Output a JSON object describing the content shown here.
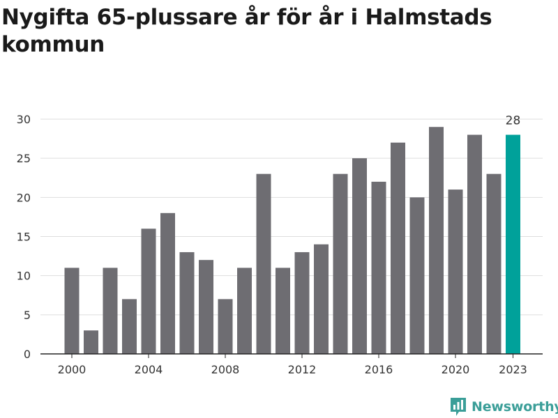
{
  "title": "Nygifta 65-plussare år för år i Halmstads kommun",
  "brand": {
    "name": "Newsworthy",
    "icon": "bar-chart-icon",
    "color": "#3a9e98"
  },
  "colors": {
    "bar": "#6e6d72",
    "highlight": "#00a19a",
    "grid": "#dddddd",
    "axis": "#222222",
    "text": "#333333"
  },
  "chart_data": {
    "type": "bar",
    "title": "Nygifta 65-plussare år för år i Halmstads kommun",
    "xlabel": "",
    "ylabel": "",
    "ylim": [
      0,
      30
    ],
    "yticks": [
      0,
      5,
      10,
      15,
      20,
      25,
      30
    ],
    "grid": true,
    "categories": [
      2000,
      2001,
      2002,
      2003,
      2004,
      2005,
      2006,
      2007,
      2008,
      2009,
      2010,
      2011,
      2012,
      2013,
      2014,
      2015,
      2016,
      2017,
      2018,
      2019,
      2020,
      2021,
      2022,
      2023
    ],
    "values": [
      11,
      3,
      11,
      7,
      16,
      18,
      13,
      12,
      7,
      11,
      23,
      11,
      13,
      14,
      23,
      25,
      22,
      27,
      20,
      29,
      21,
      28,
      23,
      28
    ],
    "xtick_labels": [
      "2000",
      "2004",
      "2008",
      "2012",
      "2016",
      "2020",
      "2023"
    ],
    "highlighted": 2023,
    "data_labels": [
      {
        "category": 2023,
        "text": "28"
      }
    ]
  }
}
